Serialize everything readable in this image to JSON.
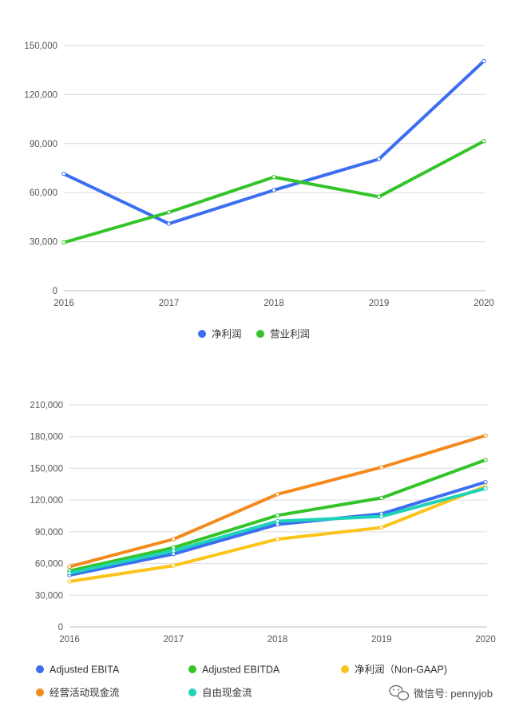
{
  "chart_data": [
    {
      "type": "line",
      "x": [
        "2016",
        "2017",
        "2018",
        "2019",
        "2020"
      ],
      "ylim": [
        0,
        150000
      ],
      "yticks": [
        "0",
        "30,000",
        "60,000",
        "90,000",
        "120,000",
        "150,000"
      ],
      "grid": true,
      "legend_position": "bottom-center",
      "series": [
        {
          "name": "净利润",
          "color": "#3b6ef0",
          "values": [
            71500,
            41000,
            61500,
            80500,
            140500
          ]
        },
        {
          "name": "营业利润",
          "color": "#33c429",
          "values": [
            29500,
            48000,
            69500,
            57500,
            91500
          ]
        }
      ]
    },
    {
      "type": "line",
      "x": [
        "2016",
        "2017",
        "2018",
        "2019",
        "2020"
      ],
      "ylim": [
        0,
        210000
      ],
      "yticks": [
        "0",
        "30,000",
        "60,000",
        "90,000",
        "120,000",
        "150,000",
        "180,000",
        "210,000"
      ],
      "grid": true,
      "legend_position": "bottom-left",
      "series": [
        {
          "name": "Adjusted EBITA",
          "color": "#3b6ef0",
          "values": [
            49000,
            69000,
            97000,
            107000,
            137000
          ]
        },
        {
          "name": "Adjusted EBITDA",
          "color": "#33c429",
          "values": [
            53000,
            75000,
            105500,
            122000,
            158000
          ]
        },
        {
          "name": "净利润（Non-GAAP)",
          "color": "#fcc419",
          "values": [
            43000,
            58000,
            83000,
            94000,
            133000
          ]
        },
        {
          "name": "经营活动现金流",
          "color": "#f48a1d",
          "values": [
            57000,
            83000,
            125500,
            151000,
            181000
          ]
        },
        {
          "name": "自由现金流",
          "color": "#1ed4b8",
          "values": [
            51000,
            72000,
            100000,
            104500,
            131000
          ]
        }
      ]
    }
  ],
  "watermark": {
    "icon": "wechat-icon",
    "text": "微信号: pennyjob"
  }
}
